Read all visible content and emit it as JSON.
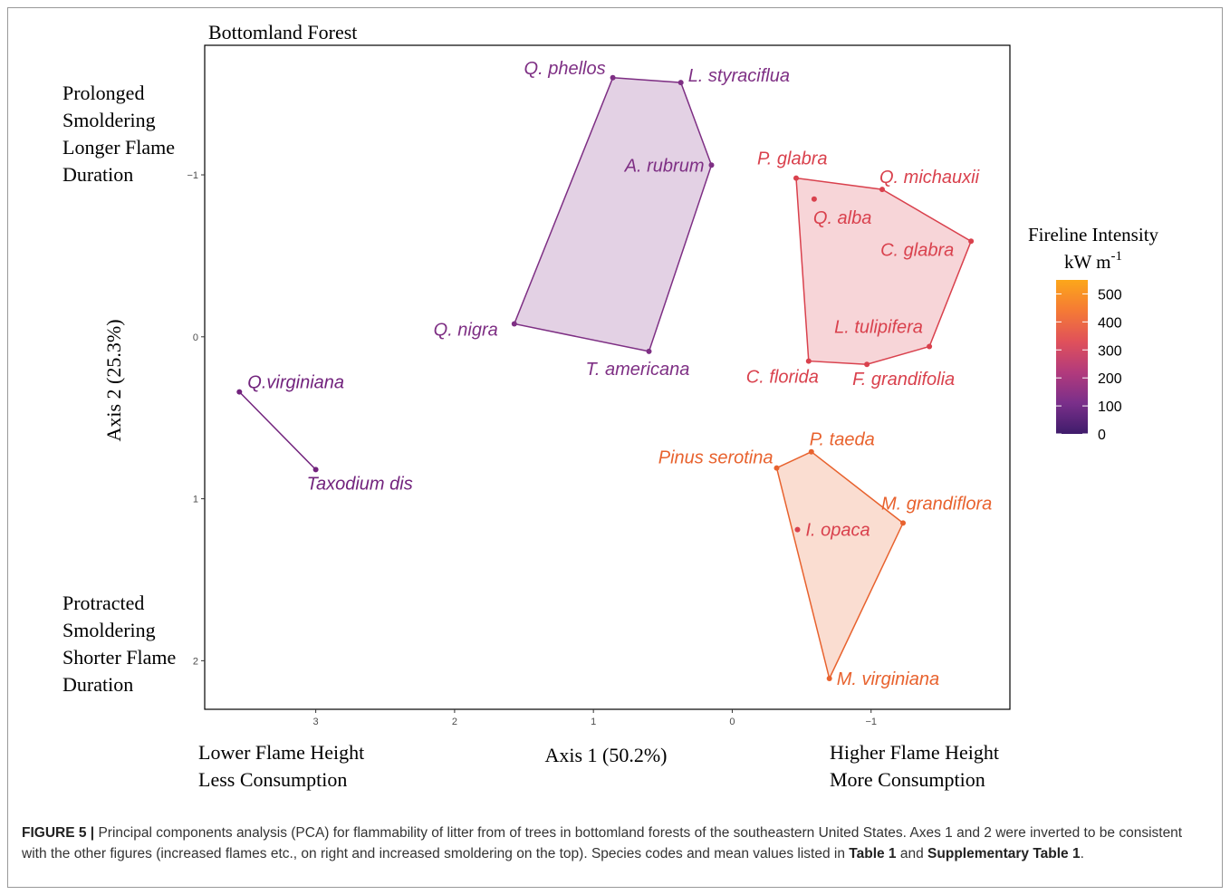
{
  "chart_data": {
    "type": "scatter",
    "title": "Bottomland Forest",
    "xlabel": "Axis 1 (50.2%)",
    "ylabel": "Axis 2 (25.3%)",
    "x_reversed": true,
    "y_reversed": true,
    "xlim": [
      3.8,
      -2.0
    ],
    "ylim": [
      -1.8,
      2.3
    ],
    "x_ticks": [
      3,
      2,
      1,
      0,
      -1
    ],
    "x_tick_labels": [
      "3",
      "2",
      "1",
      "0",
      "−1"
    ],
    "y_ticks": [
      -1,
      0,
      1,
      2
    ],
    "y_tick_labels": [
      "−1",
      "0",
      "1",
      "2"
    ],
    "grid": false,
    "legend": {
      "title_line1": "Fireline Intensity",
      "title_line2": "kW m",
      "title_sup": "-1",
      "placement": "right",
      "range": [
        0,
        550
      ],
      "ticks": [
        0,
        100,
        200,
        300,
        400,
        500
      ],
      "tick_labels": [
        "0",
        "100",
        "200",
        "300",
        "400",
        "500"
      ],
      "gradient": [
        "#3f1c6b",
        "#7a2f8a",
        "#b23a7c",
        "#e0515a",
        "#f57a35",
        "#fca71a"
      ]
    },
    "series": [
      {
        "color": "#7e2f84",
        "points": [
          {
            "label": "Q. phellos",
            "x": 0.86,
            "y": -1.6
          },
          {
            "label": "L. styraciflua",
            "x": 0.37,
            "y": -1.57
          },
          {
            "label": "A. rubrum",
            "x": 0.15,
            "y": -1.06
          },
          {
            "label": "Q. nigra",
            "x": 1.57,
            "y": -0.08
          },
          {
            "label": "T. americana",
            "x": 0.6,
            "y": 0.09
          }
        ],
        "hull": [
          "Q. phellos",
          "L. styraciflua",
          "A. rubrum",
          "T. americana",
          "Q. nigra"
        ]
      },
      {
        "color": "#d9414d",
        "points": [
          {
            "label": "P. glabra",
            "x": -0.46,
            "y": -0.98
          },
          {
            "label": "Q. michauxii",
            "x": -1.08,
            "y": -0.91
          },
          {
            "label": "Q. alba",
            "x": -0.59,
            "y": -0.85
          },
          {
            "label": "C. glabra",
            "x": -1.72,
            "y": -0.59
          },
          {
            "label": "L. tulipifera",
            "x": -1.42,
            "y": 0.06
          },
          {
            "label": "F. grandifolia",
            "x": -0.97,
            "y": 0.17
          },
          {
            "label": "C. florida",
            "x": -0.55,
            "y": 0.15
          }
        ],
        "hull": [
          "P. glabra",
          "Q. michauxii",
          "C. glabra",
          "L. tulipifera",
          "F. grandifolia",
          "C. florida"
        ]
      },
      {
        "color": "#72237d",
        "points": [
          {
            "label": "Q.virginiana",
            "x": 3.55,
            "y": 0.34
          },
          {
            "label": "Taxodium dis",
            "x": 3.0,
            "y": 0.82
          }
        ],
        "hull": [
          "Q.virginiana",
          "Taxodium dis"
        ]
      },
      {
        "color": "#e8622e",
        "points": [
          {
            "label": "P. taeda",
            "x": -0.57,
            "y": 0.71
          },
          {
            "label": "Pinus serotina",
            "x": -0.32,
            "y": 0.81
          },
          {
            "label": "M. grandiflora",
            "x": -1.23,
            "y": 1.15
          },
          {
            "label": "I. opaca",
            "x": -0.47,
            "y": 1.19
          },
          {
            "label": "M. virginiana",
            "x": -0.7,
            "y": 2.11
          }
        ],
        "hull": [
          "Pinus serotina",
          "P. taeda",
          "M. grandiflora",
          "M. virginiana"
        ],
        "inner_point_color": "#d9414d"
      }
    ]
  },
  "annotations": {
    "top_left": [
      "Prolonged",
      "Smoldering",
      "Longer Flame",
      "Duration"
    ],
    "bottom_left": [
      "Protracted",
      "Smoldering",
      "Shorter Flame",
      "Duration"
    ],
    "bottom_under_left": [
      "Lower Flame Height",
      "Less Consumption"
    ],
    "bottom_under_right": [
      "Higher Flame Height",
      "More Consumption"
    ]
  },
  "caption": {
    "label": "FIGURE 5 |",
    "text_before_table": " Principal components analysis (PCA) for flammability of litter from of trees in bottomland forests of the southeastern United States. Axes 1 and 2 were inverted to be consistent with the other figures (increased flames etc., on right and increased smoldering on the top). Species codes and mean values listed in ",
    "table_ref": "Table 1",
    "between": " and ",
    "supp_ref": "Supplementary Table 1",
    "end": "."
  }
}
